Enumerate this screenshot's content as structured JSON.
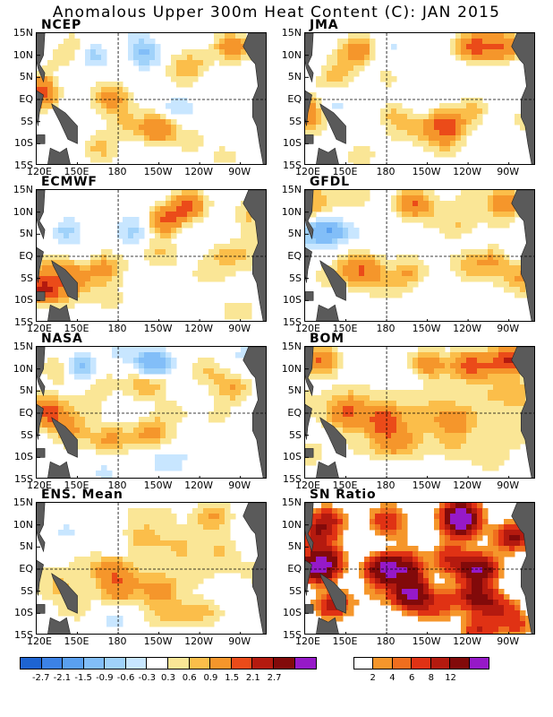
{
  "title": "Anomalous Upper 300m Heat Content (C): JAN 2015",
  "x_ticks": [
    "120E",
    "150E",
    "180",
    "150W",
    "120W",
    "90W"
  ],
  "y_ticks": [
    "15N",
    "10N",
    "5N",
    "EQ",
    "5S",
    "10S",
    "15S"
  ],
  "chart_data": [
    {
      "type": "heatmap",
      "title": "NCEP",
      "variable": "heat content anomaly",
      "units": "C",
      "xlim": [
        "120E",
        "70W"
      ],
      "ylim": [
        "15S",
        "15N"
      ],
      "features": [
        {
          "lon": 122,
          "lat": 1,
          "value": 1.5
        },
        {
          "lon": 175,
          "lat": 0,
          "value": 0.9
        },
        {
          "lon": 210,
          "lat": -6,
          "value": 1.2
        },
        {
          "lon": 265,
          "lat": 12,
          "value": 1.5
        },
        {
          "lon": 160,
          "lat": 10,
          "value": -0.9
        },
        {
          "lon": 200,
          "lat": 10,
          "value": -0.9
        },
        {
          "lon": 140,
          "lat": 5,
          "value": -0.6
        }
      ]
    },
    {
      "type": "heatmap",
      "title": "JMA",
      "variable": "heat content anomaly",
      "units": "C",
      "xlim": [
        "120E",
        "70W"
      ],
      "ylim": [
        "15S",
        "15N"
      ],
      "features": [
        {
          "lon": 125,
          "lat": -2,
          "value": 1.5
        },
        {
          "lon": 185,
          "lat": -4,
          "value": 0.9
        },
        {
          "lon": 225,
          "lat": -6,
          "value": 1.5
        },
        {
          "lon": 160,
          "lat": 11,
          "value": 1.5
        },
        {
          "lon": 245,
          "lat": 12,
          "value": 1.5
        },
        {
          "lon": 265,
          "lat": 12,
          "value": 1.5
        }
      ]
    },
    {
      "type": "heatmap",
      "title": "ECMWF",
      "variable": "heat content anomaly",
      "units": "C",
      "xlim": [
        "120E",
        "70W"
      ],
      "ylim": [
        "15S",
        "15N"
      ],
      "features": [
        {
          "lon": 170,
          "lat": -3,
          "value": 0.9
        },
        {
          "lon": 125,
          "lat": -8,
          "value": 1.5
        },
        {
          "lon": 215,
          "lat": 8,
          "value": 1.5
        },
        {
          "lon": 232,
          "lat": 12,
          "value": 1.5
        },
        {
          "lon": 140,
          "lat": 6,
          "value": -0.9
        },
        {
          "lon": 190,
          "lat": 5,
          "value": -0.6
        }
      ]
    },
    {
      "type": "heatmap",
      "title": "GFDL",
      "variable": "heat content anomaly",
      "units": "C",
      "xlim": [
        "120E",
        "70W"
      ],
      "ylim": [
        "15S",
        "15N"
      ],
      "features": [
        {
          "lon": 165,
          "lat": -3,
          "value": 0.9
        },
        {
          "lon": 198,
          "lat": -4,
          "value": 0.9
        },
        {
          "lon": 200,
          "lat": 12,
          "value": 1.5
        },
        {
          "lon": 265,
          "lat": 12,
          "value": 1.5
        },
        {
          "lon": 140,
          "lat": 6,
          "value": -1.5
        },
        {
          "lon": 125,
          "lat": 5,
          "value": -0.9
        }
      ]
    },
    {
      "type": "heatmap",
      "title": "NASA",
      "variable": "heat content anomaly",
      "units": "C",
      "xlim": [
        "120E",
        "70W"
      ],
      "ylim": [
        "15S",
        "15N"
      ],
      "features": [
        {
          "lon": 130,
          "lat": 0,
          "value": 1.5
        },
        {
          "lon": 145,
          "lat": -4,
          "value": 0.9
        },
        {
          "lon": 205,
          "lat": -5,
          "value": 0.9
        },
        {
          "lon": 248,
          "lat": 10,
          "value": 0.9
        },
        {
          "lon": 150,
          "lat": 10,
          "value": -1.5
        },
        {
          "lon": 205,
          "lat": 11,
          "value": -1.5
        },
        {
          "lon": 215,
          "lat": -11,
          "value": -0.6
        }
      ]
    },
    {
      "type": "heatmap",
      "title": "BOM",
      "variable": "heat content anomaly",
      "units": "C",
      "xlim": [
        "120E",
        "70W"
      ],
      "ylim": [
        "15S",
        "15N"
      ],
      "features": [
        {
          "lon": 150,
          "lat": 0,
          "value": 0.9
        },
        {
          "lon": 178,
          "lat": -2,
          "value": 1.5
        },
        {
          "lon": 230,
          "lat": -2,
          "value": 0.9
        },
        {
          "lon": 130,
          "lat": 12,
          "value": 1.5
        },
        {
          "lon": 210,
          "lat": 11,
          "value": 1.5
        },
        {
          "lon": 240,
          "lat": 11,
          "value": 1.5
        },
        {
          "lon": 272,
          "lat": 12,
          "value": 1.5
        }
      ]
    },
    {
      "type": "heatmap",
      "title": "ENS. Mean",
      "variable": "heat content anomaly",
      "units": "C",
      "xlim": [
        "120E",
        "70W"
      ],
      "ylim": [
        "15S",
        "15N"
      ],
      "features": [
        {
          "lon": 175,
          "lat": 0,
          "value": 0.9
        },
        {
          "lon": 180,
          "lat": -5,
          "value": 0.9
        },
        {
          "lon": 210,
          "lat": -5,
          "value": 0.9
        },
        {
          "lon": 250,
          "lat": 12,
          "value": 0.9
        },
        {
          "lon": 163,
          "lat": 9,
          "value": -0.6
        },
        {
          "lon": 140,
          "lat": 8,
          "value": -0.3
        }
      ]
    },
    {
      "type": "heatmap",
      "title": "SN Ratio",
      "variable": "signal-to-noise ratio",
      "xlim": [
        "120E",
        "70W"
      ],
      "ylim": [
        "15S",
        "15N"
      ],
      "features": [
        {
          "lon": 130,
          "lat": 0,
          "value": 6
        },
        {
          "lon": 178,
          "lat": 0,
          "value": 12
        },
        {
          "lon": 195,
          "lat": 0,
          "value": 8
        },
        {
          "lon": 248,
          "lat": 0,
          "value": 12
        },
        {
          "lon": 200,
          "lat": -6,
          "value": 8
        },
        {
          "lon": 245,
          "lat": -6,
          "value": 6
        },
        {
          "lon": 235,
          "lat": 10,
          "value": 6
        }
      ]
    }
  ],
  "colorbars": [
    {
      "labels": [
        "-2.7",
        "-2.1",
        "-1.5",
        "-0.9",
        "-0.6",
        "-0.3",
        "0.3",
        "0.6",
        "0.9",
        "1.5",
        "2.1",
        "2.7"
      ],
      "colors": [
        "#1e64d2",
        "#3c82e6",
        "#5aa0f0",
        "#82bef8",
        "#a0d2fa",
        "#c8e6ff",
        "#ffffff",
        "#fae696",
        "#fbbe4a",
        "#f5962b",
        "#eb4b19",
        "#b41a0f",
        "#820a0a",
        "#9619c8"
      ]
    },
    {
      "labels": [
        "2",
        "4",
        "6",
        "8",
        "12"
      ],
      "colors": [
        "#ffffff",
        "#f5962b",
        "#f06e1e",
        "#e03214",
        "#b41a0f",
        "#820a0a",
        "#9619c8"
      ]
    }
  ]
}
